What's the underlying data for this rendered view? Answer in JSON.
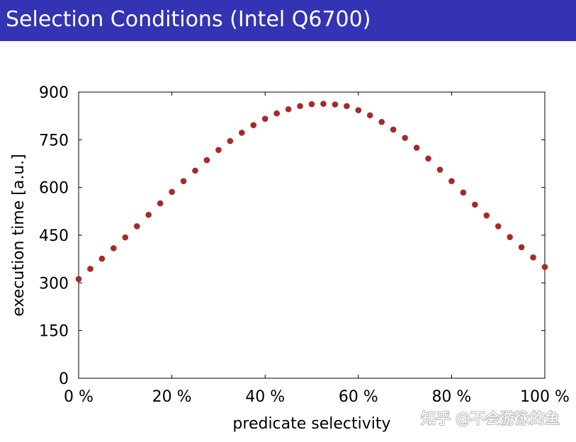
{
  "slide": {
    "title": "Selection Conditions (Intel Q6700)"
  },
  "watermark": "知乎 @不会游泳的鱼",
  "chart_data": {
    "type": "scatter",
    "title": "",
    "xlabel": "predicate selectivity",
    "ylabel": "execution time [a.u.]",
    "xlim": [
      0,
      100
    ],
    "ylim": [
      0,
      900
    ],
    "xticks": [
      0,
      20,
      40,
      60,
      80,
      100
    ],
    "xtick_labels": [
      "0 %",
      "20 %",
      "40 %",
      "60 %",
      "80 %",
      "100 %"
    ],
    "yticks": [
      0,
      150,
      300,
      450,
      600,
      750,
      900
    ],
    "ytick_labels": [
      "0",
      "150",
      "300",
      "450",
      "600",
      "750",
      "900"
    ],
    "grid": false,
    "marker_color": "#a52a2a",
    "x": [
      0,
      2.5,
      5,
      7.5,
      10,
      12.5,
      15,
      17.5,
      20,
      22.5,
      25,
      27.5,
      30,
      32.5,
      35,
      37.5,
      40,
      42.5,
      45,
      47.5,
      50,
      52.5,
      55,
      57.5,
      60,
      62.5,
      65,
      67.5,
      70,
      72.5,
      75,
      77.5,
      80,
      82.5,
      85,
      87.5,
      90,
      92.5,
      95,
      97.5,
      100
    ],
    "y": [
      312,
      344,
      376,
      409,
      443,
      478,
      514,
      550,
      586,
      620,
      653,
      686,
      718,
      746,
      772,
      796,
      816,
      833,
      846,
      856,
      862,
      863,
      861,
      856,
      843,
      827,
      806,
      782,
      756,
      725,
      691,
      656,
      620,
      584,
      546,
      512,
      478,
      444,
      412,
      380,
      350
    ]
  }
}
